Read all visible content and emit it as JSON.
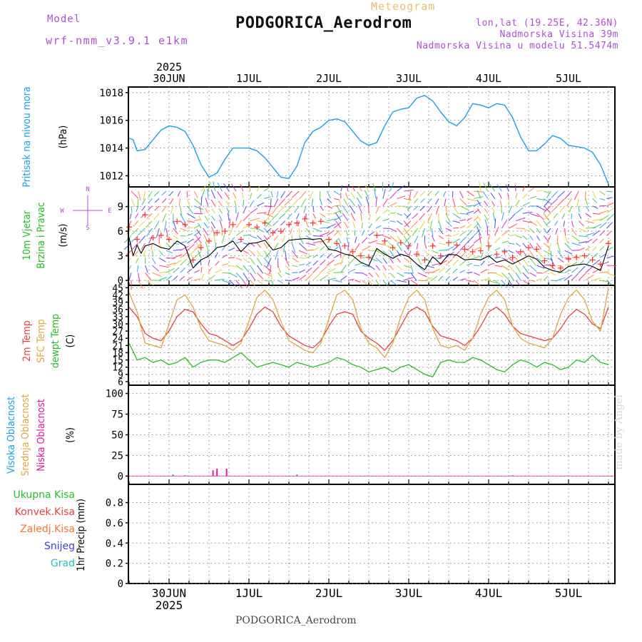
{
  "header": {
    "model_label": "Model",
    "model_name": "wrf-nmm_v3.9.1 e1km",
    "meteogram": "Meteogram",
    "title": "PODGORICA_Aerodrom",
    "lonlat": "lon,lat (19.25E, 42.36N)",
    "elevation": "Nadmorska Visina 39m",
    "model_elevation": "Nadmorska Visina u modelu 51.5474m"
  },
  "footer": {
    "station": "PODGORICA_Aerodrom",
    "credit": "made by Angel"
  },
  "colors": {
    "pressure": "#1aa0e6",
    "temp2m": "#e64040",
    "sfc_temp": "#e0a640",
    "dewpoint": "#22c022",
    "wind_speed": "#000000",
    "gust": "#ff3030",
    "high_cloud": "#1aa0e6",
    "mid_cloud": "#e0a640",
    "low_cloud": "#e0199a",
    "total_precip": "#22c022",
    "convective": "#e64040",
    "freezing": "#f07830",
    "snow": "#4040e6",
    "hail": "#20c0c0",
    "model_label": "#b050d0",
    "meteogram": "#e8c070",
    "grid": "#777777"
  },
  "chart_data": [
    {
      "type": "line",
      "panel": "pressure",
      "ylabel": [
        "Pritisak na nivou mora",
        "(hPa)"
      ],
      "yticks": [
        1012,
        1014,
        1016,
        1018
      ],
      "ylim": [
        1011.2,
        1018.4
      ],
      "x_top": {
        "year": "2025",
        "labels": [
          "30JUN",
          "1JUL",
          "2JUL",
          "3JUL",
          "4JUL",
          "5JUL"
        ]
      },
      "x_bottom": {
        "labels": [
          "30JUN",
          "1JUL",
          "2JUL",
          "3JUL",
          "4JUL",
          "5JUL"
        ],
        "year": "2025"
      },
      "series": [
        {
          "x": [
            0,
            0.05,
            0.1,
            0.2,
            0.3,
            0.4,
            0.5,
            0.6,
            0.7,
            0.8,
            0.9,
            1,
            1.1,
            1.2,
            1.3,
            1.4,
            1.5,
            1.6,
            1.7,
            1.8,
            1.9,
            2,
            2.1,
            2.2,
            2.3,
            2.4,
            2.5,
            2.6,
            2.7,
            2.8,
            2.9,
            3,
            3.1,
            3.2,
            3.3,
            3.4,
            3.5,
            3.6,
            3.7,
            3.8,
            3.9,
            4,
            4.1,
            4.2,
            4.3,
            4.4,
            4.5,
            4.6,
            4.7,
            4.8,
            4.9,
            5,
            5.1,
            5.2,
            5.3,
            5.4,
            5.5,
            5.6,
            5.7,
            5.8,
            5.9,
            6
          ],
          "values": [
            1014.7,
            1014.6,
            1013.8,
            1013.9,
            1014.6,
            1015.3,
            1015.6,
            1015.5,
            1015.2,
            1014.2,
            1012.8,
            1011.9,
            1012.2,
            1013.2,
            1014.0,
            1014.0,
            1014.0,
            1013.8,
            1013.3,
            1012.6,
            1011.9,
            1011.8,
            1012.7,
            1014.4,
            1015.2,
            1015.5,
            1016.0,
            1016.1,
            1015.9,
            1015.2,
            1014.5,
            1014.2,
            1014.4,
            1015.6,
            1016.6,
            1016.8,
            1016.9,
            1017.6,
            1017.8,
            1017.4,
            1016.6,
            1015.9,
            1015.6,
            1016.2,
            1017.2,
            1017.1,
            1016.9,
            1017.2,
            1017.1,
            1016.2,
            1014.8,
            1013.8,
            1013.8,
            1014.3,
            1014.9,
            1014.7,
            1014.2,
            1014.1,
            1014.0,
            1013.7,
            1012.8,
            1011.4
          ],
          "color": "#1aa0e6"
        }
      ]
    },
    {
      "type": "line",
      "panel": "wind",
      "ylabel": [
        "10m Vjetar",
        "Brzina i Pravac",
        "(m/s)"
      ],
      "compass": {
        "n": "N",
        "s": "S",
        "e": "E",
        "w": "W"
      },
      "yticks": [
        0,
        3,
        6,
        9
      ],
      "ylim": [
        -0.6,
        11.4
      ],
      "series": [
        {
          "name": "speed",
          "x": [
            0,
            0.05,
            0.1,
            0.15,
            0.2,
            0.3,
            0.4,
            0.5,
            0.6,
            0.7,
            0.8,
            0.9,
            1,
            1.1,
            1.2,
            1.3,
            1.4,
            1.5,
            1.6,
            1.7,
            1.8,
            1.9,
            2,
            2.1,
            2.2,
            2.3,
            2.4,
            2.5,
            2.6,
            2.7,
            2.8,
            2.9,
            3,
            3.1,
            3.2,
            3.3,
            3.4,
            3.5,
            3.6,
            3.7,
            3.8,
            3.9,
            4,
            4.1,
            4.2,
            4.3,
            4.4,
            4.5,
            4.6,
            4.7,
            4.8,
            4.9,
            5,
            5.1,
            5.2,
            5.3,
            5.4,
            5.5,
            5.6,
            5.7,
            5.8,
            5.9,
            6
          ],
          "values": [
            5.2,
            3.0,
            4.3,
            3.3,
            4.2,
            4.5,
            4.0,
            3.8,
            4.8,
            4.2,
            1.5,
            2.5,
            3.0,
            4.0,
            4.2,
            4.8,
            3.5,
            4.5,
            4.6,
            4.9,
            3.7,
            4.0,
            4.9,
            5.0,
            5.1,
            5.0,
            5.1,
            3.8,
            3.6,
            3.2,
            3.0,
            2.2,
            1.8,
            3.9,
            3.2,
            2.7,
            3.2,
            2.9,
            2.0,
            1.3,
            2.9,
            2.0,
            3.2,
            3.1,
            2.5,
            2.6,
            2.5,
            3.0,
            2.2,
            2.5,
            2.0,
            2.5,
            3.0,
            2.6,
            1.6,
            1.2,
            1.0,
            1.7,
            1.9,
            2.0,
            1.7,
            1.2,
            4.2
          ],
          "color": "#000000"
        },
        {
          "name": "gust",
          "x": [
            0,
            0.1,
            0.2,
            0.3,
            0.4,
            0.5,
            0.6,
            0.7,
            0.8,
            0.9,
            1,
            1.1,
            1.2,
            1.3,
            1.4,
            1.5,
            1.6,
            1.7,
            1.8,
            1.9,
            2,
            2.1,
            2.2,
            2.3,
            2.4,
            2.5,
            2.6,
            2.7,
            2.8,
            2.9,
            3,
            3.1,
            3.2,
            3.3,
            3.4,
            3.5,
            3.6,
            3.7,
            3.8,
            3.9,
            4,
            4.1,
            4.2,
            4.3,
            4.4,
            4.5,
            4.6,
            4.7,
            4.8,
            4.9,
            5,
            5.1,
            5.2,
            5.3,
            5.4,
            5.5,
            5.6,
            5.7,
            5.8,
            5.9,
            6
          ],
          "values": [
            6.5,
            5.0,
            8.0,
            5.2,
            5.5,
            5.0,
            7.2,
            6.8,
            2.5,
            4.0,
            4.8,
            5.8,
            6.0,
            6.8,
            5.0,
            6.8,
            6.5,
            7.0,
            5.8,
            6.0,
            6.8,
            7.0,
            7.5,
            7.0,
            7.2,
            5.0,
            4.5,
            4.2,
            3.5,
            3.0,
            2.8,
            5.5,
            4.8,
            4.0,
            4.6,
            4.2,
            3.2,
            2.5,
            4.2,
            3.0,
            4.6,
            4.3,
            3.8,
            3.5,
            3.6,
            4.2,
            3.2,
            3.5,
            2.8,
            3.5,
            4.0,
            3.8,
            2.4,
            1.8,
            1.5,
            2.6,
            2.8,
            3.0,
            2.5,
            2.0,
            4.5
          ],
          "color": "#ff3030"
        }
      ]
    },
    {
      "type": "line",
      "panel": "temperature",
      "ylabel": [
        "2m Temp",
        "SFC Temp",
        "dewpt Temp",
        "(C)"
      ],
      "yticks": [
        6,
        9,
        12,
        15,
        18,
        21,
        24,
        27,
        30,
        33,
        36,
        39,
        42,
        45
      ],
      "ylim": [
        4.5,
        46
      ],
      "series": [
        {
          "name": "2m Temp",
          "x": [
            0,
            0.1,
            0.2,
            0.3,
            0.4,
            0.5,
            0.6,
            0.7,
            0.8,
            0.9,
            1,
            1.1,
            1.2,
            1.3,
            1.4,
            1.5,
            1.6,
            1.7,
            1.8,
            1.9,
            2,
            2.1,
            2.2,
            2.3,
            2.4,
            2.5,
            2.6,
            2.7,
            2.8,
            2.9,
            3,
            3.1,
            3.2,
            3.3,
            3.4,
            3.5,
            3.6,
            3.7,
            3.8,
            3.9,
            4,
            4.1,
            4.2,
            4.3,
            4.4,
            4.5,
            4.6,
            4.7,
            4.8,
            4.9,
            5,
            5.1,
            5.2,
            5.3,
            5.4,
            5.5,
            5.6,
            5.7,
            5.8,
            5.9,
            6
          ],
          "values": [
            37,
            33,
            26,
            24,
            23,
            27,
            33,
            36,
            35,
            30,
            26,
            25,
            23,
            21,
            23,
            28,
            34,
            37,
            35,
            29,
            25,
            23,
            21,
            20,
            23,
            29,
            34,
            35,
            34,
            27,
            24,
            22,
            19,
            23,
            29,
            35,
            37,
            35,
            29,
            25,
            24,
            23,
            21,
            24,
            29,
            35,
            37,
            34,
            29,
            26,
            25,
            24,
            23,
            24,
            28,
            33,
            36,
            34,
            30,
            28,
            37
          ],
          "color": "#e64040"
        },
        {
          "name": "SFC Temp",
          "x": [
            0,
            0.1,
            0.2,
            0.3,
            0.4,
            0.5,
            0.6,
            0.7,
            0.8,
            0.9,
            1,
            1.1,
            1.2,
            1.3,
            1.4,
            1.5,
            1.6,
            1.7,
            1.8,
            1.9,
            2,
            2.1,
            2.2,
            2.3,
            2.4,
            2.5,
            2.6,
            2.7,
            2.8,
            2.9,
            3,
            3.1,
            3.2,
            3.3,
            3.4,
            3.5,
            3.6,
            3.7,
            3.8,
            3.9,
            4,
            4.1,
            4.2,
            4.3,
            4.4,
            4.5,
            4.6,
            4.7,
            4.8,
            4.9,
            5,
            5.1,
            5.2,
            5.3,
            5.4,
            5.5,
            5.6,
            5.7,
            5.8,
            5.9,
            6
          ],
          "values": [
            43,
            35,
            22,
            21,
            20,
            30,
            40,
            42,
            37,
            28,
            23,
            22,
            21,
            19,
            22,
            31,
            41,
            44,
            40,
            31,
            23,
            21,
            19,
            18,
            22,
            32,
            42,
            44,
            40,
            28,
            22,
            20,
            16,
            22,
            33,
            41,
            44,
            40,
            28,
            21,
            20,
            21,
            19,
            24,
            34,
            41,
            44,
            40,
            29,
            24,
            22,
            21,
            20,
            24,
            34,
            41,
            44,
            40,
            31,
            27,
            45
          ],
          "color": "#e0a640"
        },
        {
          "name": "dewpt Temp",
          "x": [
            0,
            0.1,
            0.2,
            0.3,
            0.4,
            0.5,
            0.6,
            0.7,
            0.8,
            0.9,
            1,
            1.1,
            1.2,
            1.3,
            1.4,
            1.5,
            1.6,
            1.7,
            1.8,
            1.9,
            2,
            2.1,
            2.2,
            2.3,
            2.4,
            2.5,
            2.6,
            2.7,
            2.8,
            2.9,
            3,
            3.1,
            3.2,
            3.3,
            3.4,
            3.5,
            3.6,
            3.7,
            3.8,
            3.9,
            4,
            4.1,
            4.2,
            4.3,
            4.4,
            4.5,
            4.6,
            4.7,
            4.8,
            4.9,
            5,
            5.1,
            5.2,
            5.3,
            5.4,
            5.5,
            5.6,
            5.7,
            5.8,
            5.9,
            6
          ],
          "values": [
            22,
            15,
            16,
            14,
            15,
            13,
            14,
            16,
            12,
            14,
            15,
            15,
            14,
            16,
            18,
            15,
            12,
            13,
            14,
            13,
            12,
            14,
            13,
            12,
            13,
            14,
            16,
            15,
            13,
            12,
            10,
            11,
            12,
            10,
            12,
            13,
            11,
            9,
            8,
            14,
            15,
            14,
            14,
            16,
            15,
            13,
            11,
            10,
            13,
            15,
            14,
            12,
            14,
            13,
            11,
            12,
            15,
            14,
            17,
            14,
            13
          ],
          "color": "#22c022"
        }
      ]
    },
    {
      "type": "bar",
      "panel": "cloud",
      "ylabel": [
        "Visoka Oblacnost",
        "Srednja Oblacnost",
        "Niska Oblacnost",
        "(%)"
      ],
      "yticks": [
        0,
        25,
        50,
        75,
        100
      ],
      "ylim": [
        -10,
        110
      ],
      "series": [
        {
          "name": "Visoka Oblacnost",
          "x": [
            0.55,
            0.7,
            2.1,
            4.8
          ],
          "values": [
            2,
            1,
            2,
            1
          ],
          "color": "#1aa0e6"
        },
        {
          "name": "Srednja Oblacnost",
          "x": [],
          "values": [],
          "color": "#e0a640"
        },
        {
          "name": "Niska Oblacnost",
          "x": [
            1.05,
            1.1,
            1.22
          ],
          "values": [
            7,
            9,
            9
          ],
          "color": "#e0199a"
        }
      ]
    },
    {
      "type": "bar",
      "panel": "precipitation",
      "ylabel": [
        "1hr Precip (mm)"
      ],
      "legend": [
        "Ukupna Kisa",
        "Konvek.Kisa",
        "Zaledj.Kisa",
        "Snijeg",
        "Grad"
      ],
      "yticks": [
        0,
        0.2,
        0.4,
        0.6,
        0.8
      ],
      "ylim": [
        0,
        0.98
      ],
      "series": []
    }
  ]
}
